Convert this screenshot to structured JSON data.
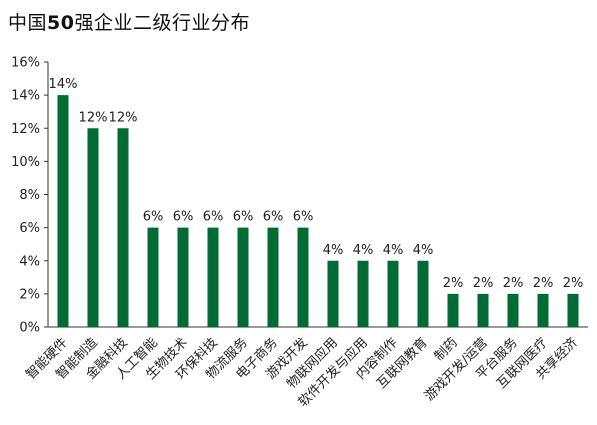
{
  "chart_data": {
    "type": "bar",
    "title_prefix": "中国",
    "title_number": "50",
    "title_suffix": "强企业二级行业分布",
    "categories": [
      "智能硬件",
      "智能制造",
      "金融科技",
      "人工智能",
      "生物技术",
      "环保科技",
      "物流服务",
      "电子商务",
      "游戏开发",
      "物联网应用",
      "软件开发与应用",
      "内容制作",
      "互联网教育",
      "制药",
      "游戏开发/运营",
      "平台服务",
      "互联网医疗",
      "共享经济"
    ],
    "values": [
      14,
      12,
      12,
      6,
      6,
      6,
      6,
      6,
      6,
      4,
      4,
      4,
      4,
      2,
      2,
      2,
      2,
      2
    ],
    "data_labels": [
      "14%",
      "12%",
      "12%",
      "6%",
      "6%",
      "6%",
      "6%",
      "6%",
      "6%",
      "4%",
      "4%",
      "4%",
      "4%",
      "2%",
      "2%",
      "2%",
      "2%",
      "2%"
    ],
    "y_ticks": [
      "0%",
      "2%",
      "4%",
      "6%",
      "8%",
      "10%",
      "12%",
      "14%",
      "16%"
    ],
    "ylim": [
      0,
      16
    ],
    "bar_color": "#006b35",
    "grid": false,
    "legend": "none"
  }
}
